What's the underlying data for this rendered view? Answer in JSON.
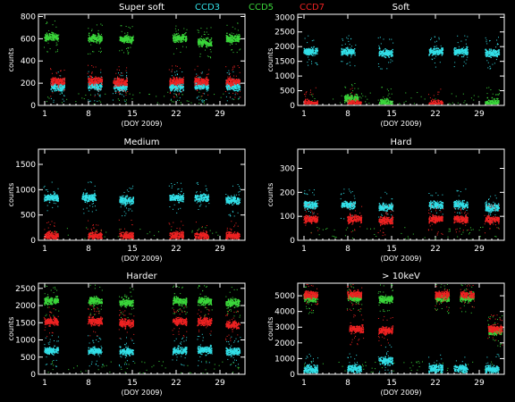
{
  "legend": [
    {
      "name": "CCD3",
      "color": "#33e0e8"
    },
    {
      "name": "CCD5",
      "color": "#3bd63b"
    },
    {
      "name": "CCD7",
      "color": "#ee2222"
    }
  ],
  "chart_data": [
    {
      "type": "scatter",
      "title": "Super soft",
      "xlabel": "(DOY 2009)",
      "ylabel": "counts",
      "xlim": [
        0,
        33
      ],
      "ylim": [
        0,
        820
      ],
      "xticks": [
        1,
        8,
        15,
        22,
        29
      ],
      "yticks": [
        0,
        200,
        400,
        600,
        800
      ],
      "series": [
        {
          "name": "CCD3",
          "color": "#33e0e8",
          "clusters": [
            {
              "x": 3,
              "y": 170
            },
            {
              "x": 9,
              "y": 180
            },
            {
              "x": 13,
              "y": 170
            },
            {
              "x": 22,
              "y": 170
            },
            {
              "x": 26,
              "y": 175
            },
            {
              "x": 31,
              "y": 175
            }
          ]
        },
        {
          "name": "CCD5",
          "color": "#3bd63b",
          "clusters": [
            {
              "x": 2,
              "y": 620
            },
            {
              "x": 9,
              "y": 610
            },
            {
              "x": 14,
              "y": 600
            },
            {
              "x": 22.5,
              "y": 610
            },
            {
              "x": 26.5,
              "y": 570
            },
            {
              "x": 31,
              "y": 610
            }
          ]
        },
        {
          "name": "CCD7",
          "color": "#ee2222",
          "clusters": [
            {
              "x": 3,
              "y": 220
            },
            {
              "x": 9,
              "y": 225
            },
            {
              "x": 13,
              "y": 215
            },
            {
              "x": 22,
              "y": 220
            },
            {
              "x": 26,
              "y": 220
            },
            {
              "x": 31,
              "y": 220
            }
          ]
        }
      ]
    },
    {
      "type": "scatter",
      "title": "Soft",
      "xlabel": "(DOY 2009)",
      "ylabel": "counts",
      "xlim": [
        0,
        33
      ],
      "ylim": [
        0,
        3100
      ],
      "xticks": [
        1,
        8,
        15,
        22,
        29
      ],
      "yticks": [
        0,
        500,
        1000,
        1500,
        2000,
        2500,
        3000
      ],
      "series": [
        {
          "name": "CCD3",
          "color": "#33e0e8",
          "clusters": [
            {
              "x": 2,
              "y": 1850
            },
            {
              "x": 8,
              "y": 1850
            },
            {
              "x": 14,
              "y": 1800
            },
            {
              "x": 22,
              "y": 1850
            },
            {
              "x": 26,
              "y": 1850
            },
            {
              "x": 31,
              "y": 1800
            }
          ]
        },
        {
          "name": "CCD5",
          "color": "#3bd63b",
          "clusters": [
            {
              "x": 8.5,
              "y": 250
            },
            {
              "x": 14,
              "y": 100
            },
            {
              "x": 31,
              "y": 100
            }
          ]
        },
        {
          "name": "CCD7",
          "color": "#ee2222",
          "clusters": [
            {
              "x": 2,
              "y": 80
            },
            {
              "x": 9,
              "y": 80
            },
            {
              "x": 22,
              "y": 70
            }
          ]
        }
      ]
    },
    {
      "type": "scatter",
      "title": "Medium",
      "xlabel": "(DOY 2009)",
      "ylabel": "counts",
      "xlim": [
        0,
        33
      ],
      "ylim": [
        0,
        1800
      ],
      "xticks": [
        1,
        8,
        15,
        22,
        29
      ],
      "yticks": [
        0,
        500,
        1000,
        1500
      ],
      "series": [
        {
          "name": "CCD3",
          "color": "#33e0e8",
          "clusters": [
            {
              "x": 2,
              "y": 850
            },
            {
              "x": 8,
              "y": 850
            },
            {
              "x": 14,
              "y": 800
            },
            {
              "x": 22,
              "y": 850
            },
            {
              "x": 26,
              "y": 850
            },
            {
              "x": 31,
              "y": 800
            }
          ]
        },
        {
          "name": "CCD7",
          "color": "#ee2222",
          "clusters": [
            {
              "x": 2,
              "y": 100
            },
            {
              "x": 9,
              "y": 100
            },
            {
              "x": 14,
              "y": 100
            },
            {
              "x": 22,
              "y": 100
            },
            {
              "x": 26,
              "y": 100
            },
            {
              "x": 31,
              "y": 100
            }
          ]
        }
      ]
    },
    {
      "type": "scatter",
      "title": "Hard",
      "xlabel": "(DOY 2009)",
      "ylabel": "counts",
      "xlim": [
        0,
        33
      ],
      "ylim": [
        0,
        380
      ],
      "xticks": [
        1,
        8,
        15,
        22,
        29
      ],
      "yticks": [
        0,
        100,
        200,
        300
      ],
      "series": [
        {
          "name": "CCD3",
          "color": "#33e0e8",
          "clusters": [
            {
              "x": 2,
              "y": 150
            },
            {
              "x": 8,
              "y": 150
            },
            {
              "x": 14,
              "y": 140
            },
            {
              "x": 22,
              "y": 150
            },
            {
              "x": 26,
              "y": 150
            },
            {
              "x": 31,
              "y": 140
            }
          ]
        },
        {
          "name": "CCD7",
          "color": "#ee2222",
          "clusters": [
            {
              "x": 2,
              "y": 90
            },
            {
              "x": 9,
              "y": 90
            },
            {
              "x": 14,
              "y": 85
            },
            {
              "x": 22,
              "y": 90
            },
            {
              "x": 26,
              "y": 90
            },
            {
              "x": 31,
              "y": 90
            }
          ]
        }
      ]
    },
    {
      "type": "scatter",
      "title": "Harder",
      "xlabel": "(DOY 2009)",
      "ylabel": "counts",
      "xlim": [
        0,
        33
      ],
      "ylim": [
        0,
        2650
      ],
      "xticks": [
        1,
        8,
        15,
        22,
        29
      ],
      "yticks": [
        0,
        500,
        1000,
        1500,
        2000,
        2500
      ],
      "series": [
        {
          "name": "CCD3",
          "color": "#33e0e8",
          "clusters": [
            {
              "x": 2,
              "y": 700
            },
            {
              "x": 9,
              "y": 700
            },
            {
              "x": 14,
              "y": 680
            },
            {
              "x": 22.5,
              "y": 700
            },
            {
              "x": 26.5,
              "y": 720
            },
            {
              "x": 31,
              "y": 680
            }
          ]
        },
        {
          "name": "CCD5",
          "color": "#3bd63b",
          "clusters": [
            {
              "x": 2,
              "y": 2150
            },
            {
              "x": 9,
              "y": 2150
            },
            {
              "x": 14,
              "y": 2100
            },
            {
              "x": 22.5,
              "y": 2150
            },
            {
              "x": 26.5,
              "y": 2150
            },
            {
              "x": 31,
              "y": 2100
            }
          ]
        },
        {
          "name": "CCD7",
          "color": "#ee2222",
          "clusters": [
            {
              "x": 2,
              "y": 1550
            },
            {
              "x": 9,
              "y": 1550
            },
            {
              "x": 14,
              "y": 1500
            },
            {
              "x": 22.5,
              "y": 1550
            },
            {
              "x": 26.5,
              "y": 1550
            },
            {
              "x": 31,
              "y": 1450
            }
          ]
        }
      ]
    },
    {
      "type": "scatter",
      "title": "> 10keV",
      "xlabel": "(DOY 2009)",
      "ylabel": "counts",
      "xlim": [
        0,
        33
      ],
      "ylim": [
        0,
        5800
      ],
      "xticks": [
        1,
        8,
        15,
        22,
        29
      ],
      "yticks": [
        0,
        1000,
        2000,
        3000,
        4000,
        5000
      ],
      "series": [
        {
          "name": "CCD3",
          "color": "#33e0e8",
          "clusters": [
            {
              "x": 2,
              "y": 350
            },
            {
              "x": 9,
              "y": 400
            },
            {
              "x": 14,
              "y": 900
            },
            {
              "x": 22,
              "y": 400
            },
            {
              "x": 26,
              "y": 400
            },
            {
              "x": 31,
              "y": 350
            }
          ]
        },
        {
          "name": "CCD5",
          "color": "#3bd63b",
          "clusters": [
            {
              "x": 2,
              "y": 4900
            },
            {
              "x": 9,
              "y": 4900
            },
            {
              "x": 14,
              "y": 4800
            },
            {
              "x": 23,
              "y": 4900
            },
            {
              "x": 27,
              "y": 4900
            },
            {
              "x": 31.5,
              "y": 2800
            }
          ]
        },
        {
          "name": "CCD7",
          "color": "#ee2222",
          "clusters": [
            {
              "x": 2,
              "y": 5100
            },
            {
              "x": 9,
              "y": 5100
            },
            {
              "x": 9.3,
              "y": 2900
            },
            {
              "x": 14,
              "y": 2800
            },
            {
              "x": 23,
              "y": 5100
            },
            {
              "x": 27,
              "y": 5100
            },
            {
              "x": 31.5,
              "y": 2900
            }
          ]
        }
      ]
    }
  ]
}
